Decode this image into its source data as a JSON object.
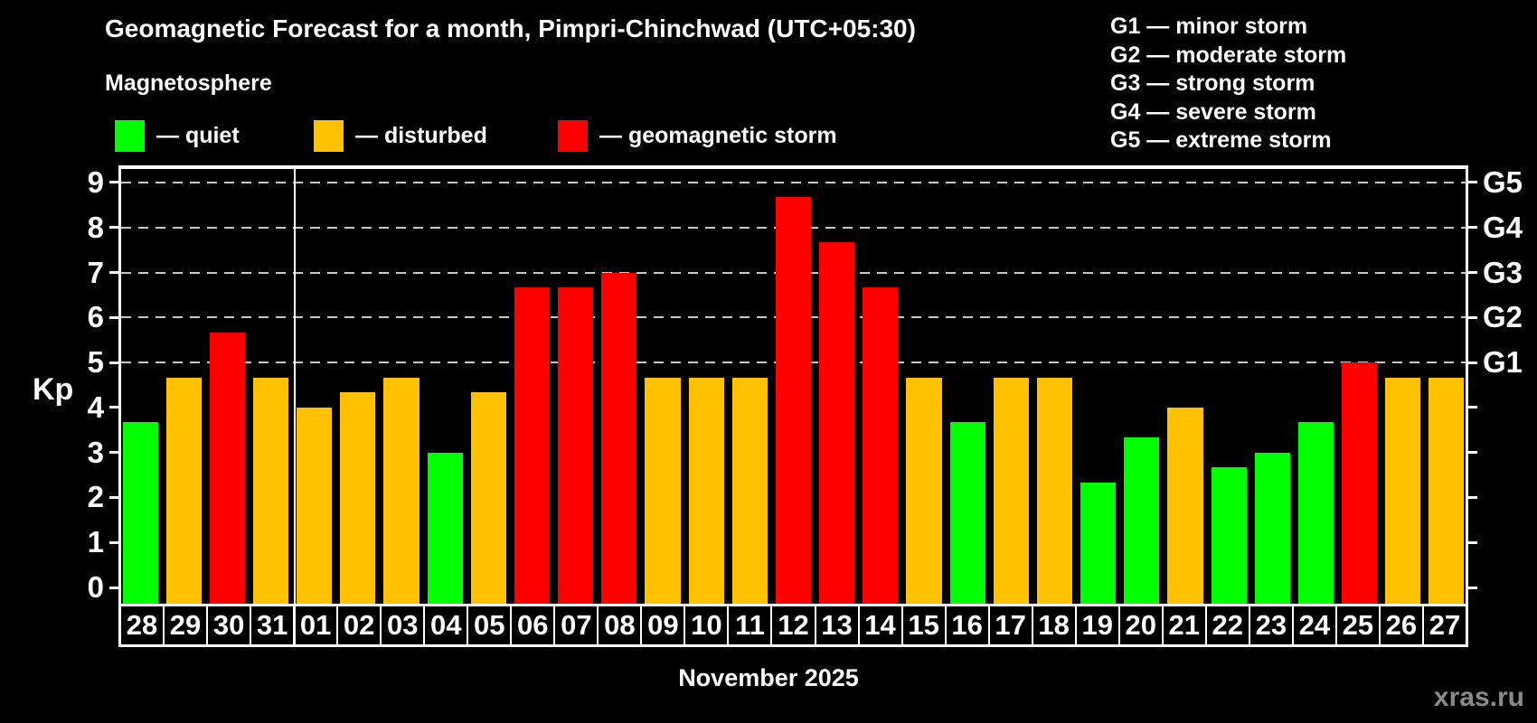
{
  "header": {
    "title": "Geomagnetic Forecast for a month, Pimpri-Chinchwad (UTC+05:30)",
    "subtitle": "Magnetosphere"
  },
  "legend": {
    "items": [
      {
        "key": "quiet",
        "label": "— quiet"
      },
      {
        "key": "disturbed",
        "label": "— disturbed"
      },
      {
        "key": "storm",
        "label": "— geomagnetic storm"
      }
    ]
  },
  "g_legend": {
    "items": [
      "G1 — minor storm",
      "G2 — moderate storm",
      "G3 — strong storm",
      "G4 — severe storm",
      "G5 — extreme storm"
    ]
  },
  "y_axis": {
    "label": "Kp",
    "ticks": [
      0,
      1,
      2,
      3,
      4,
      5,
      6,
      7,
      8,
      9
    ]
  },
  "right_axis": {
    "labels": [
      {
        "kp": 9,
        "text": "G5"
      },
      {
        "kp": 8,
        "text": "G4"
      },
      {
        "kp": 7,
        "text": "G3"
      },
      {
        "kp": 6,
        "text": "G2"
      },
      {
        "kp": 5,
        "text": "G1"
      }
    ]
  },
  "footer": {
    "x_axis_label": "November 2025",
    "watermark": "xras.ru"
  },
  "colors": {
    "quiet": "#00ff00",
    "disturbed": "#ffc100",
    "storm": "#ff0000",
    "background": "#000000",
    "axis": "#ffffff",
    "grid": "#c8c8c8",
    "watermark": "#8a8a8a"
  },
  "chart_data": {
    "type": "bar",
    "title": "Geomagnetic Forecast for a month, Pimpri-Chinchwad (UTC+05:30)",
    "xlabel": "November 2025",
    "ylabel": "Kp",
    "ylim": [
      0,
      9.4
    ],
    "grid_kp_levels": [
      5,
      6,
      7,
      8,
      9
    ],
    "month_boundary_after_index": 3,
    "categories": [
      "28",
      "29",
      "30",
      "31",
      "01",
      "02",
      "03",
      "04",
      "05",
      "06",
      "07",
      "08",
      "09",
      "10",
      "11",
      "12",
      "13",
      "14",
      "15",
      "16",
      "17",
      "18",
      "19",
      "20",
      "21",
      "22",
      "23",
      "24",
      "25",
      "26",
      "27"
    ],
    "values": [
      3.67,
      4.67,
      5.67,
      4.67,
      4.0,
      4.33,
      4.67,
      3.0,
      4.33,
      6.67,
      6.67,
      7.0,
      4.67,
      4.67,
      4.67,
      8.67,
      7.67,
      6.67,
      4.67,
      3.67,
      4.67,
      4.67,
      2.33,
      3.33,
      4.0,
      2.67,
      3.0,
      3.67,
      5.0,
      4.67,
      4.67
    ],
    "levels": [
      "quiet",
      "disturbed",
      "storm",
      "disturbed",
      "disturbed",
      "disturbed",
      "disturbed",
      "quiet",
      "disturbed",
      "storm",
      "storm",
      "storm",
      "disturbed",
      "disturbed",
      "disturbed",
      "storm",
      "storm",
      "storm",
      "disturbed",
      "quiet",
      "disturbed",
      "disturbed",
      "quiet",
      "quiet",
      "disturbed",
      "quiet",
      "quiet",
      "quiet",
      "storm",
      "disturbed",
      "disturbed"
    ]
  }
}
